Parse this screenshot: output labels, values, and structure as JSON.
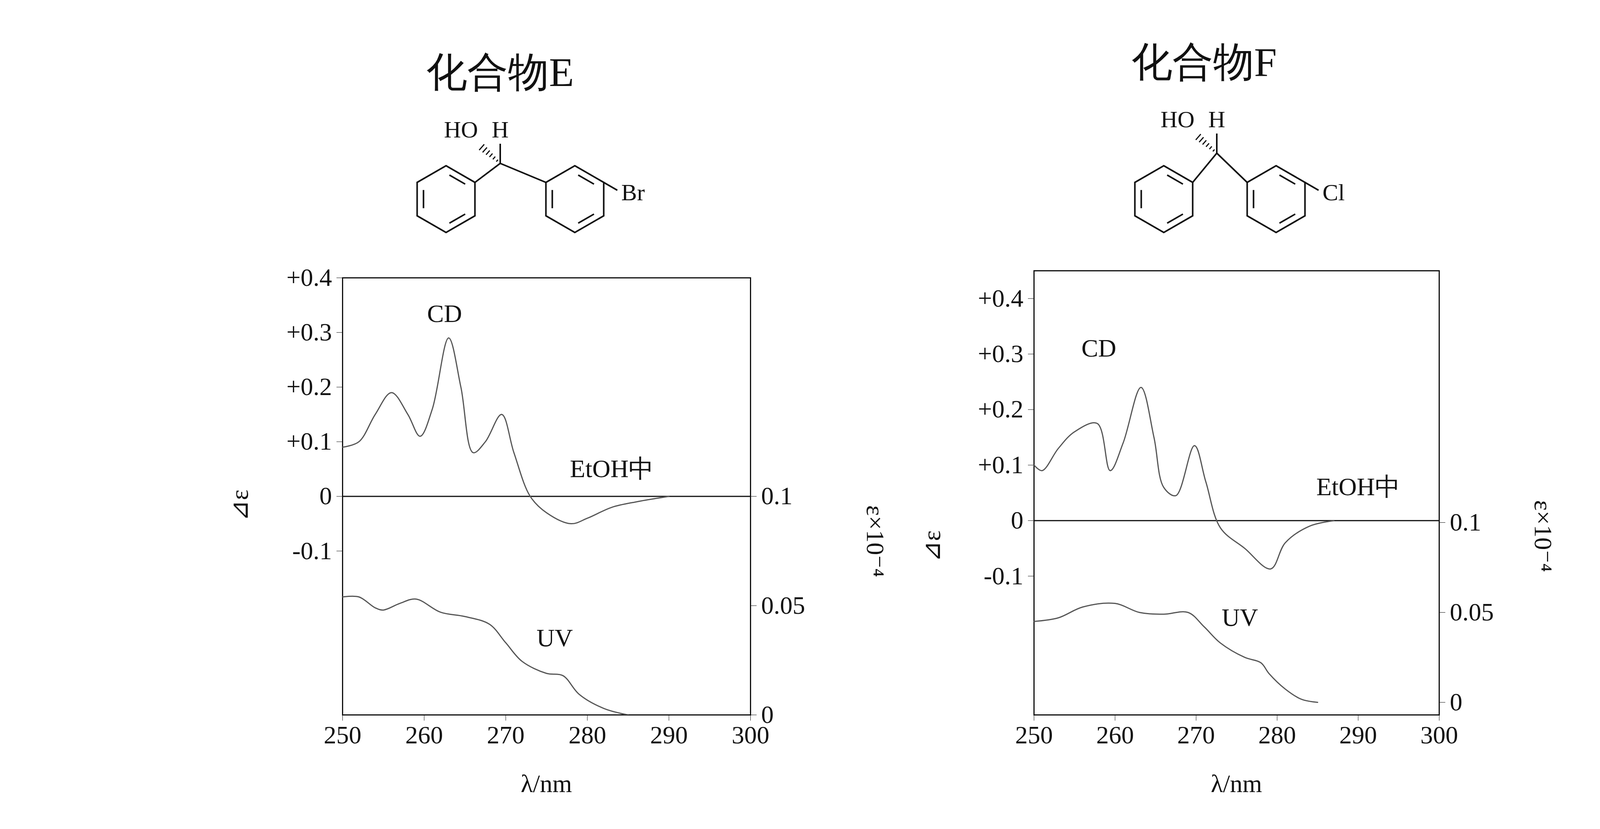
{
  "chart_data": [
    {
      "type": "line",
      "title": "化合物E",
      "structure": {
        "labels": [
          "HO",
          "H"
        ],
        "substituent": "Br"
      },
      "x_label": "λ/nm",
      "y_label": "⊿ε",
      "y2_label": "ε×10⁻⁴",
      "xlim": [
        250,
        300
      ],
      "xticks": [
        250,
        260,
        270,
        280,
        290,
        300
      ],
      "ylim": [
        -0.4,
        0.4
      ],
      "yticks": [
        {
          "value": 0.4,
          "label": "+0.4"
        },
        {
          "value": 0.3,
          "label": "+0.3"
        },
        {
          "value": 0.2,
          "label": "+0.2"
        },
        {
          "value": 0.1,
          "label": "+0.1"
        },
        0,
        -0.1
      ],
      "y2lim": [
        0,
        0.2
      ],
      "y2ticks": [
        0,
        0.05,
        0.1
      ],
      "reference_lines": [
        0
      ],
      "annotations": [
        "EtOH中"
      ],
      "series": [
        {
          "name": "CD",
          "color": "#555555",
          "x": [
            250,
            252,
            254,
            256,
            258,
            259.5,
            261,
            263,
            264.5,
            266,
            267.5,
            269.5,
            271,
            273,
            275,
            278,
            280,
            283,
            286,
            290
          ],
          "values": [
            0.09,
            0.1,
            0.15,
            0.19,
            0.15,
            0.11,
            0.16,
            0.29,
            0.2,
            0.08,
            0.1,
            0.15,
            0.08,
            0.0,
            -0.03,
            -0.05,
            -0.04,
            -0.02,
            -0.01,
            0
          ]
        },
        {
          "name": "UV",
          "color": "#555555",
          "axis": "y2",
          "x": [
            250,
            252,
            254,
            255,
            257,
            259,
            262,
            265,
            268,
            270,
            272,
            275,
            277,
            279,
            282,
            285
          ],
          "values": [
            0.054,
            0.054,
            0.049,
            0.048,
            0.051,
            0.053,
            0.047,
            0.045,
            0.0415,
            0.033,
            0.0245,
            0.019,
            0.018,
            0.0094,
            0.003,
            0
          ]
        }
      ]
    },
    {
      "type": "line",
      "title": "化合物F",
      "structure": {
        "labels": [
          "HO",
          "H"
        ],
        "substituent": "Cl"
      },
      "x_label": "λ/nm",
      "y_label": "⊿ε",
      "y2_label": "ε×10⁻⁴",
      "xlim": [
        250,
        300
      ],
      "xticks": [
        250,
        260,
        270,
        280,
        290,
        300
      ],
      "ylim": [
        -0.35,
        0.45
      ],
      "yticks": [
        {
          "value": 0.4,
          "label": "+0.4"
        },
        {
          "value": 0.3,
          "label": "+0.3"
        },
        {
          "value": 0.2,
          "label": "+0.2"
        },
        {
          "value": 0.1,
          "label": "+0.1"
        },
        0,
        -0.1
      ],
      "y2lim": [
        -0.007,
        0.24
      ],
      "y2ticks": [
        0,
        0.05,
        0.1
      ],
      "reference_lines": [
        0
      ],
      "annotations": [
        "EtOH中"
      ],
      "series": [
        {
          "name": "CD",
          "color": "#555555",
          "x": [
            250,
            251,
            253,
            255,
            257.8,
            259.4,
            261,
            263.2,
            264.8,
            266,
            267.5,
            269.8,
            271.2,
            273,
            276,
            279.2,
            281,
            284,
            287
          ],
          "values": [
            0.1,
            0.09,
            0.13,
            0.16,
            0.175,
            0.09,
            0.14,
            0.24,
            0.15,
            0.06,
            0.045,
            0.135,
            0.07,
            -0.013,
            -0.05,
            -0.087,
            -0.04,
            -0.01,
            0
          ]
        },
        {
          "name": "UV",
          "color": "#555555",
          "axis": "y2",
          "x": [
            250,
            253,
            256,
            260,
            263,
            266,
            269,
            271,
            273,
            276,
            278,
            279,
            281,
            283,
            285
          ],
          "values": [
            0.045,
            0.047,
            0.053,
            0.055,
            0.05,
            0.049,
            0.05,
            0.042,
            0.033,
            0.025,
            0.022,
            0.016,
            0.0074,
            0.0017,
            0
          ]
        }
      ]
    }
  ]
}
